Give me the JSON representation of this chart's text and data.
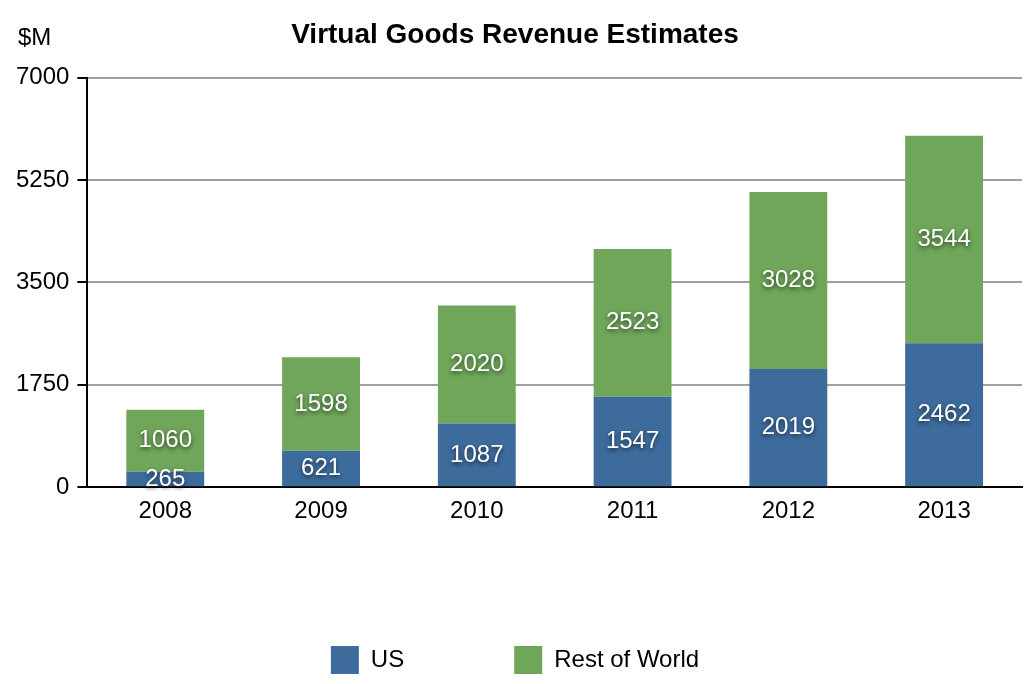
{
  "chart_data": {
    "type": "bar",
    "title": "Virtual Goods Revenue Estimates",
    "ylabel": "$M",
    "categories": [
      "2008",
      "2009",
      "2010",
      "2011",
      "2012",
      "2013"
    ],
    "series": [
      {
        "name": "US",
        "color": "#3d6b9c",
        "values": [
          265,
          621,
          1087,
          1547,
          2019,
          2462
        ]
      },
      {
        "name": "Rest of World",
        "color": "#6fa65a",
        "values": [
          1060,
          1598,
          2020,
          2523,
          3028,
          3544
        ]
      }
    ],
    "stacked": true,
    "ylim": [
      0,
      7000
    ],
    "yticks": [
      0,
      1750,
      3500,
      5250,
      7000
    ],
    "grid": "y",
    "legend": "bottom",
    "data_labels": true
  }
}
